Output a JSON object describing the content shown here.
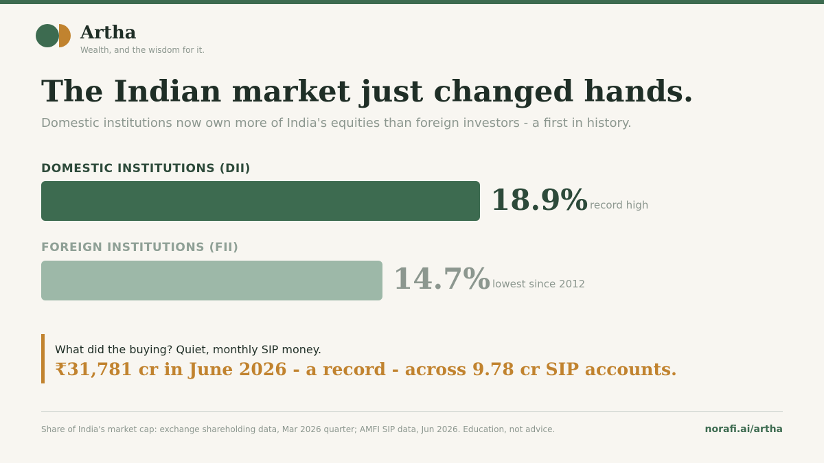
{
  "brand": {
    "name": "Artha",
    "tagline": "Wealth, and the wisdom for it.",
    "logo_colors": [
      "#3d6b50",
      "#c1832f"
    ]
  },
  "headline": "The Indian market just changed hands.",
  "subheadline": "Domestic institutions now own more of India's equities than foreign investors - a first in history.",
  "chart_data": {
    "type": "bar",
    "orientation": "horizontal",
    "unit": "%",
    "xlim": [
      0,
      20
    ],
    "grid": false,
    "legend": "none",
    "categories": [
      "DOMESTIC INSTITUTIONS (DII)",
      "FOREIGN INSTITUTIONS (FII)"
    ],
    "values": [
      18.9,
      14.7
    ],
    "value_labels": [
      "18.9%",
      "14.7%"
    ],
    "annotations": [
      "record high",
      "lowest since 2012"
    ],
    "colors": [
      "#3d6b50",
      "#9db8a8"
    ]
  },
  "callout": {
    "question": "What did the buying? Quiet, monthly SIP money.",
    "answer": "₹31,781 cr in June 2026 - a record - across 9.78 cr SIP accounts."
  },
  "footer": {
    "source": "Share of India's market cap: exchange shareholding data, Mar 2026 quarter; AMFI SIP data, Jun 2026. Education, not advice.",
    "link": "norafi.ai/artha"
  }
}
